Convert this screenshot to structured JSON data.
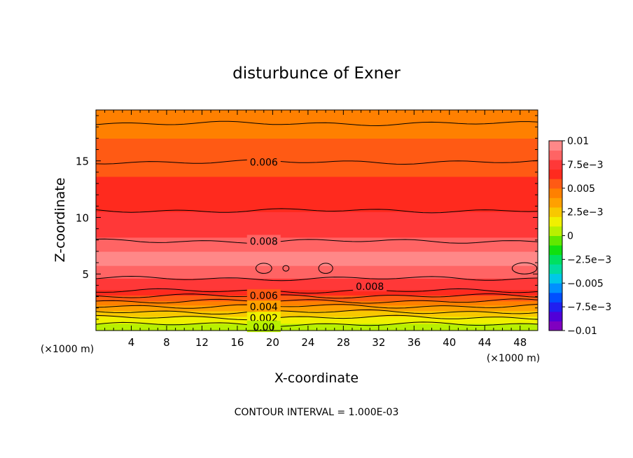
{
  "chart_data": {
    "type": "heatmap",
    "title": "disturbunce of Exner",
    "xlabel": "X-coordinate",
    "ylabel": "Z-coordinate",
    "x_unit_left": "(×1000 m)",
    "x_unit_right": "(×1000 m)",
    "xlim": [
      0,
      50
    ],
    "ylim": [
      0,
      19.5
    ],
    "x_ticks": [
      {
        "value": 4,
        "label": "4"
      },
      {
        "value": 8,
        "label": "8"
      },
      {
        "value": 12,
        "label": "12"
      },
      {
        "value": 16,
        "label": "16"
      },
      {
        "value": 20,
        "label": "20"
      },
      {
        "value": 24,
        "label": "24"
      },
      {
        "value": 28,
        "label": "28"
      },
      {
        "value": 32,
        "label": "32"
      },
      {
        "value": 36,
        "label": "36"
      },
      {
        "value": 40,
        "label": "40"
      },
      {
        "value": 44,
        "label": "44"
      },
      {
        "value": 48,
        "label": "48"
      }
    ],
    "y_ticks": [
      {
        "value": 5,
        "label": "5"
      },
      {
        "value": 10,
        "label": "10"
      },
      {
        "value": 15,
        "label": "15"
      }
    ],
    "contour_interval_text": "CONTOUR INTERVAL = 1.000E-03",
    "contour_interval": 0.001,
    "colorbar": {
      "min": -0.01,
      "max": 0.01,
      "labels": [
        {
          "value": 0.01,
          "label": "0.01"
        },
        {
          "value": 0.0075,
          "label": "7.5e−3"
        },
        {
          "value": 0.005,
          "label": "0.005"
        },
        {
          "value": 0.0025,
          "label": "2.5e−3"
        },
        {
          "value": 0,
          "label": "0"
        },
        {
          "value": -0.0025,
          "label": "−2.5e−3"
        },
        {
          "value": -0.005,
          "label": "−0.005"
        },
        {
          "value": -0.0075,
          "label": "−7.5e−3"
        },
        {
          "value": -0.01,
          "label": "−0.01"
        }
      ],
      "colors": [
        "#8000c0",
        "#5000d8",
        "#2020f0",
        "#0050ff",
        "#0090ff",
        "#00c8e8",
        "#00dca0",
        "#00e060",
        "#10e010",
        "#60e800",
        "#b8f000",
        "#f0f000",
        "#f8c800",
        "#ffa000",
        "#ff8000",
        "#ff5a14",
        "#ff2a1e",
        "#ff3838",
        "#ff6464",
        "#ff8888"
      ]
    },
    "profile_z": [
      0,
      0.5,
      1,
      1.5,
      2,
      2.5,
      3,
      3.5,
      4,
      4.5,
      5,
      5.5,
      6,
      6.5,
      7,
      7.5,
      8,
      8.5,
      9,
      9.5,
      10,
      11,
      12,
      13,
      14,
      15,
      16,
      17,
      18,
      19.5
    ],
    "profile_values": [
      0.0002,
      0.0008,
      0.0016,
      0.0026,
      0.0036,
      0.0046,
      0.0057,
      0.0068,
      0.0075,
      0.0079,
      0.0083,
      0.0088,
      0.0092,
      0.0093,
      0.009,
      0.0086,
      0.0082,
      0.0078,
      0.0076,
      0.0074,
      0.0072,
      0.0068,
      0.0065,
      0.0062,
      0.0059,
      0.0056,
      0.0053,
      0.005,
      0.0047,
      0.0044
    ],
    "contour_labels": [
      {
        "x": 19,
        "z": 14.9,
        "label": "0.006"
      },
      {
        "x": 19,
        "z": 7.9,
        "label": "0.008"
      },
      {
        "x": 31,
        "z": 3.9,
        "label": "0.008"
      },
      {
        "x": 19,
        "z": 3.1,
        "label": "0.006"
      },
      {
        "x": 19,
        "z": 2.1,
        "label": "0.004"
      },
      {
        "x": 19,
        "z": 1.1,
        "label": "0.002"
      },
      {
        "x": 19,
        "z": 0.3,
        "label": "0.00"
      }
    ],
    "contours": [
      {
        "level": 0.001,
        "z": 0.55
      },
      {
        "level": 0.002,
        "z": 1.15
      },
      {
        "level": 0.003,
        "z": 1.65
      },
      {
        "level": 0.004,
        "z": 2.15
      },
      {
        "level": 0.005,
        "z": 2.6
      },
      {
        "level": 0.006,
        "z": 3.05
      },
      {
        "level": 0.007,
        "z": 3.5
      },
      {
        "level": 0.008,
        "z": 4.6
      },
      {
        "level": 0.008,
        "z": 7.9
      },
      {
        "level": 0.007,
        "z": 10.6
      },
      {
        "level": 0.006,
        "z": 14.9
      },
      {
        "level": 0.005,
        "z": 18.3
      }
    ],
    "closed_cells": [
      {
        "x": 19,
        "z": 5.5,
        "rx": 0.9,
        "rz": 0.45
      },
      {
        "x": 21.5,
        "z": 5.5,
        "rx": 0.35,
        "rz": 0.25
      },
      {
        "x": 26,
        "z": 5.5,
        "rx": 0.8,
        "rz": 0.45
      },
      {
        "x": 48.5,
        "z": 5.5,
        "rx": 1.4,
        "rz": 0.5
      }
    ]
  }
}
